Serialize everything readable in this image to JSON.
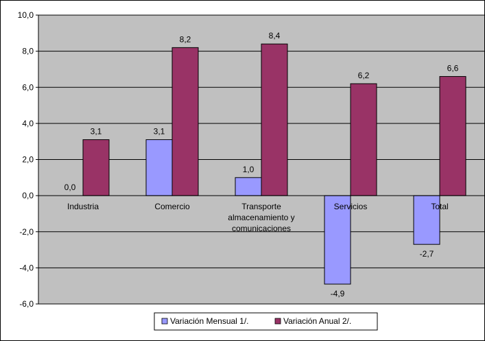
{
  "chart_data": {
    "type": "bar",
    "categories": [
      [
        "Industria"
      ],
      [
        "Comercio"
      ],
      [
        "Transporte",
        "almacenamiento y",
        "comunicaciones"
      ],
      [
        "Servicios"
      ],
      [
        "Total"
      ]
    ],
    "series": [
      {
        "name": "Variación Mensual 1/.",
        "values": [
          0.0,
          3.1,
          1.0,
          -4.9,
          -2.7
        ],
        "labels": [
          "0,0",
          "3,1",
          "1,0",
          "-4,9",
          "-2,7"
        ],
        "color": "#9999ff"
      },
      {
        "name": "Variación Anual 2/.",
        "values": [
          3.1,
          8.2,
          8.4,
          6.2,
          6.6
        ],
        "labels": [
          "3,1",
          "8,2",
          "8,4",
          "6,2",
          "6,6"
        ],
        "color": "#993366"
      }
    ],
    "ylim": [
      -6,
      10
    ],
    "ytick_values": [
      -6,
      -4,
      -2,
      0,
      2,
      4,
      6,
      8,
      10
    ],
    "ytick_labels": [
      "-6,0",
      "-4,0",
      "-2,0",
      "0,0",
      "2,0",
      "4,0",
      "6,0",
      "8,0",
      "10,0"
    ],
    "plot_background": "#c0c0c0",
    "grid": true,
    "legend_position": "bottom",
    "title": "",
    "xlabel": "",
    "ylabel": ""
  }
}
